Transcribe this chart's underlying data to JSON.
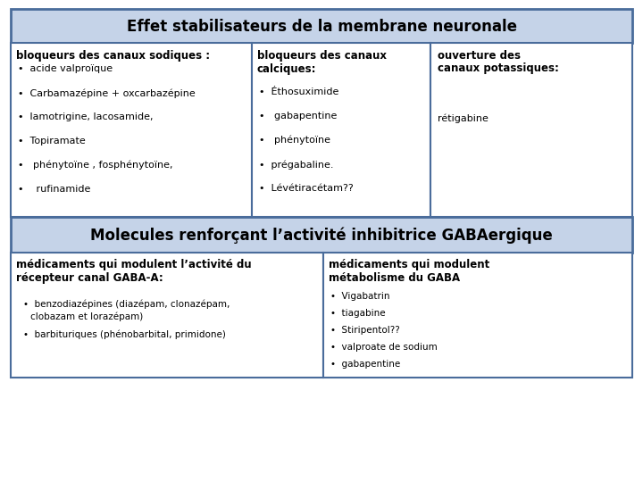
{
  "title1": "Effet stabilisateurs de la membrane neuronale",
  "title2": "Molecules renforçant l’activité inhibitrice GABAergique",
  "cell1_header": "bloqueurs des canaux sodiques :",
  "cell1_items": [
    "acide valproïque",
    "Carbamazépine + oxcarbazépine",
    "lamotrigine, lacosamide,",
    "Topiramate",
    " phénytoïne , fosphénytoïne,",
    "  rufinamide"
  ],
  "cell2_header": "bloqueurs des canaux\ncalciques:",
  "cell2_items": [
    "Éthosuximide",
    " gabapentine",
    " phénytoïne",
    "prégabaline.",
    "Lévétiracétam??"
  ],
  "cell3_line1": "ouverture des",
  "cell3_line2": "canaux potassiques:",
  "cell3_item": "rétigabine",
  "cell4_header": "médicaments qui modulent l’activité du\nrécepteur canal GABA-A:",
  "cell4_items_line1": [
    "benzodiazépines (diazépam, clonazépam,",
    "barbituriques (phénobarbital, primidone)"
  ],
  "cell4_items_line2": [
    "clobazam et lorazépam)",
    ""
  ],
  "cell5_header": "médicaments qui modulent\nmétabolisme du GABA",
  "cell5_items": [
    "Vigabatrin",
    "tiagabine",
    "Stiripentol??",
    "valproate de sodium",
    "gabapentine"
  ],
  "bg_color": "#ffffff",
  "header_bg": "#c5d3e8",
  "cell_bg": "#ffffff",
  "border_color": "#4a6c9b",
  "text_color": "#000000",
  "title_fontsize": 12,
  "header_fontsize": 8.5,
  "body_fontsize": 8.0
}
